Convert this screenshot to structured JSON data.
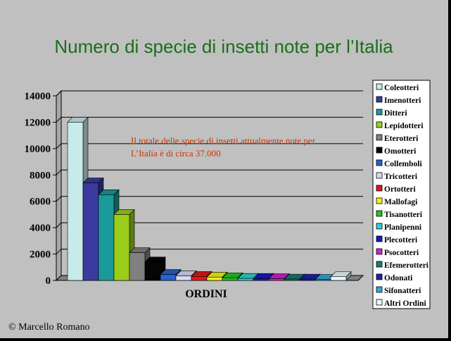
{
  "slide": {
    "copyright": "© Marcello Romano"
  },
  "chart_data": {
    "type": "bar",
    "title": "Numero di specie di insetti note per l’Italia",
    "xlabel": "ORDINI",
    "ylabel": "",
    "ylim": [
      0,
      14000
    ],
    "yticks": [
      "0",
      "2000",
      "4000",
      "6000",
      "8000",
      "10000",
      "12000",
      "14000"
    ],
    "grid": true,
    "legend_position": "right",
    "annotation": [
      "Il totale delle specie di insetti attualmente note per",
      "L’Italia è di circa 37.000"
    ],
    "series": [
      {
        "name": "Coleotteri",
        "value": 12000,
        "color": "#c8eaea"
      },
      {
        "name": "Imenotteri",
        "value": 7400,
        "color": "#3a3aa0"
      },
      {
        "name": "Ditteri",
        "value": 6500,
        "color": "#1a9a9a"
      },
      {
        "name": "Lepidotteri",
        "value": 5000,
        "color": "#9acd1a"
      },
      {
        "name": "Eterotteri",
        "value": 2100,
        "color": "#808080"
      },
      {
        "name": "Omotteri",
        "value": 1400,
        "color": "#050505"
      },
      {
        "name": "Collemboli",
        "value": 450,
        "color": "#2a5fcf"
      },
      {
        "name": "Tricotteri",
        "value": 350,
        "color": "#d8d8f5"
      },
      {
        "name": "Ortotteri",
        "value": 300,
        "color": "#e01818"
      },
      {
        "name": "Mallofagi",
        "value": 250,
        "color": "#f0f020"
      },
      {
        "name": "Tisanotteri",
        "value": 200,
        "color": "#22c422"
      },
      {
        "name": "Planipenni",
        "value": 150,
        "color": "#30d0d0"
      },
      {
        "name": "Plecotteri",
        "value": 150,
        "color": "#1818c0"
      },
      {
        "name": "Psocotteri",
        "value": 130,
        "color": "#d020d0"
      },
      {
        "name": "Efemerotteri",
        "value": 100,
        "color": "#1a7a70"
      },
      {
        "name": "Odonati",
        "value": 100,
        "color": "#2020b0"
      },
      {
        "name": "Sifonatteri",
        "value": 80,
        "color": "#30a8d8"
      },
      {
        "name": "Altri Ordini",
        "value": 280,
        "color": "#e8f8f8"
      }
    ]
  }
}
